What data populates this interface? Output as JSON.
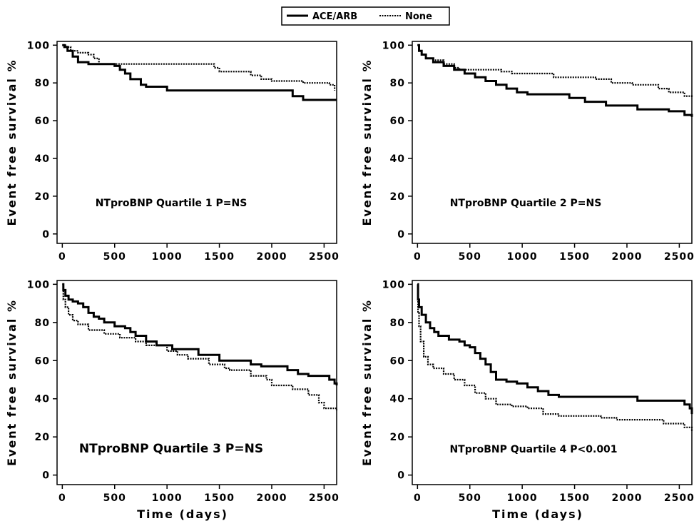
{
  "legend": {
    "entries": [
      {
        "label": "ACE/ARB",
        "style": "solid"
      },
      {
        "label": "None",
        "style": "dotted"
      }
    ]
  },
  "chart_data": [
    {
      "type": "line",
      "annotation": "NTproBNP Quartile 1 P=NS",
      "xlabel": "",
      "ylabel": "Event free survival %",
      "xlim": [
        -50,
        2620
      ],
      "ylim": [
        -5,
        102
      ],
      "xticks": [
        0,
        500,
        1000,
        1500,
        2000,
        2500
      ],
      "yticks": [
        0,
        20,
        40,
        60,
        80,
        100
      ],
      "series": [
        {
          "name": "ACE/ARB",
          "style": "solid",
          "points": [
            [
              0,
              100
            ],
            [
              20,
              99
            ],
            [
              50,
              97
            ],
            [
              100,
              94
            ],
            [
              150,
              91
            ],
            [
              250,
              90
            ],
            [
              450,
              90
            ],
            [
              500,
              89
            ],
            [
              550,
              87
            ],
            [
              600,
              85
            ],
            [
              650,
              82
            ],
            [
              750,
              79
            ],
            [
              800,
              78
            ],
            [
              1000,
              76
            ],
            [
              1850,
              76
            ],
            [
              2200,
              73
            ],
            [
              2300,
              71
            ],
            [
              2620,
              71
            ]
          ]
        },
        {
          "name": "None",
          "style": "dotted",
          "points": [
            [
              0,
              100
            ],
            [
              40,
              99
            ],
            [
              80,
              97
            ],
            [
              150,
              96
            ],
            [
              250,
              95
            ],
            [
              300,
              93
            ],
            [
              350,
              90
            ],
            [
              1350,
              90
            ],
            [
              1450,
              88
            ],
            [
              1500,
              86
            ],
            [
              1800,
              84
            ],
            [
              1900,
              82
            ],
            [
              2000,
              81
            ],
            [
              2300,
              80
            ],
            [
              2550,
              79
            ],
            [
              2600,
              76
            ]
          ]
        }
      ]
    },
    {
      "type": "line",
      "annotation": "NTproBNP Quartile 2 P=NS",
      "xlabel": "",
      "ylabel": "Event free survival %",
      "xlim": [
        -50,
        2620
      ],
      "ylim": [
        -5,
        102
      ],
      "xticks": [
        0,
        500,
        1000,
        1500,
        2000,
        2500
      ],
      "yticks": [
        0,
        20,
        40,
        60,
        80,
        100
      ],
      "series": [
        {
          "name": "ACE/ARB",
          "style": "solid",
          "points": [
            [
              0,
              100
            ],
            [
              15,
              97
            ],
            [
              40,
              95
            ],
            [
              80,
              93
            ],
            [
              150,
              91
            ],
            [
              250,
              89
            ],
            [
              350,
              87
            ],
            [
              450,
              85
            ],
            [
              550,
              83
            ],
            [
              650,
              81
            ],
            [
              750,
              79
            ],
            [
              850,
              77
            ],
            [
              950,
              75
            ],
            [
              1050,
              74
            ],
            [
              1450,
              72
            ],
            [
              1600,
              70
            ],
            [
              1800,
              68
            ],
            [
              2100,
              66
            ],
            [
              2400,
              65
            ],
            [
              2550,
              63
            ],
            [
              2620,
              62
            ]
          ]
        },
        {
          "name": "None",
          "style": "dotted",
          "points": [
            [
              0,
              100
            ],
            [
              15,
              97
            ],
            [
              40,
              95
            ],
            [
              80,
              93
            ],
            [
              150,
              92
            ],
            [
              250,
              90
            ],
            [
              350,
              88
            ],
            [
              400,
              87
            ],
            [
              800,
              86
            ],
            [
              900,
              85
            ],
            [
              1300,
              83
            ],
            [
              1700,
              82
            ],
            [
              1850,
              80
            ],
            [
              2050,
              79
            ],
            [
              2300,
              77
            ],
            [
              2400,
              75
            ],
            [
              2550,
              73
            ],
            [
              2620,
              72
            ]
          ]
        }
      ]
    },
    {
      "type": "line",
      "annotation": "NTproBNP Quartile 3 P=NS",
      "xlabel": "Time (days)",
      "ylabel": "Event free survival %",
      "xlim": [
        -50,
        2620
      ],
      "ylim": [
        -5,
        102
      ],
      "xticks": [
        0,
        500,
        1000,
        1500,
        2000,
        2500
      ],
      "yticks": [
        0,
        20,
        40,
        60,
        80,
        100
      ],
      "series": [
        {
          "name": "ACE/ARB",
          "style": "solid",
          "points": [
            [
              0,
              100
            ],
            [
              10,
              97
            ],
            [
              30,
              94
            ],
            [
              60,
              92
            ],
            [
              100,
              91
            ],
            [
              150,
              90
            ],
            [
              200,
              88
            ],
            [
              250,
              85
            ],
            [
              300,
              83
            ],
            [
              350,
              82
            ],
            [
              400,
              80
            ],
            [
              500,
              78
            ],
            [
              600,
              77
            ],
            [
              650,
              75
            ],
            [
              700,
              73
            ],
            [
              800,
              70
            ],
            [
              900,
              68
            ],
            [
              1050,
              66
            ],
            [
              1300,
              63
            ],
            [
              1500,
              60
            ],
            [
              1800,
              58
            ],
            [
              1900,
              57
            ],
            [
              2150,
              55
            ],
            [
              2250,
              53
            ],
            [
              2350,
              52
            ],
            [
              2550,
              50
            ],
            [
              2600,
              48
            ],
            [
              2620,
              47
            ]
          ]
        },
        {
          "name": "None",
          "style": "dotted",
          "points": [
            [
              0,
              100
            ],
            [
              10,
              92
            ],
            [
              30,
              88
            ],
            [
              60,
              84
            ],
            [
              100,
              81
            ],
            [
              150,
              79
            ],
            [
              250,
              76
            ],
            [
              400,
              74
            ],
            [
              550,
              72
            ],
            [
              700,
              70
            ],
            [
              800,
              68
            ],
            [
              1000,
              65
            ],
            [
              1100,
              63
            ],
            [
              1200,
              61
            ],
            [
              1400,
              58
            ],
            [
              1550,
              56
            ],
            [
              1600,
              55
            ],
            [
              1800,
              52
            ],
            [
              1950,
              50
            ],
            [
              2000,
              47
            ],
            [
              2200,
              45
            ],
            [
              2350,
              42
            ],
            [
              2450,
              38
            ],
            [
              2500,
              35
            ],
            [
              2620,
              34
            ]
          ]
        }
      ]
    },
    {
      "type": "line",
      "annotation": "NTproBNP Quartile 4 P<0.001",
      "xlabel": "Time (days)",
      "ylabel": "Event free survival %",
      "xlim": [
        -50,
        2620
      ],
      "ylim": [
        -5,
        102
      ],
      "xticks": [
        0,
        500,
        1000,
        1500,
        2000,
        2500
      ],
      "yticks": [
        0,
        20,
        40,
        60,
        80,
        100
      ],
      "series": [
        {
          "name": "ACE/ARB",
          "style": "solid",
          "points": [
            [
              0,
              100
            ],
            [
              5,
              92
            ],
            [
              15,
              88
            ],
            [
              40,
              84
            ],
            [
              80,
              80
            ],
            [
              120,
              77
            ],
            [
              160,
              75
            ],
            [
              200,
              73
            ],
            [
              300,
              71
            ],
            [
              400,
              70
            ],
            [
              450,
              68
            ],
            [
              500,
              67
            ],
            [
              550,
              64
            ],
            [
              600,
              61
            ],
            [
              650,
              58
            ],
            [
              700,
              54
            ],
            [
              750,
              50
            ],
            [
              850,
              49
            ],
            [
              950,
              48
            ],
            [
              1050,
              46
            ],
            [
              1150,
              44
            ],
            [
              1250,
              42
            ],
            [
              1350,
              41
            ],
            [
              1700,
              41
            ],
            [
              2100,
              39
            ],
            [
              2550,
              37
            ],
            [
              2600,
              35
            ],
            [
              2620,
              32
            ]
          ]
        },
        {
          "name": "None",
          "style": "dotted",
          "points": [
            [
              0,
              100
            ],
            [
              5,
              85
            ],
            [
              15,
              78
            ],
            [
              30,
              70
            ],
            [
              60,
              62
            ],
            [
              100,
              58
            ],
            [
              150,
              56
            ],
            [
              250,
              53
            ],
            [
              350,
              50
            ],
            [
              450,
              47
            ],
            [
              550,
              43
            ],
            [
              650,
              40
            ],
            [
              750,
              37
            ],
            [
              900,
              36
            ],
            [
              1050,
              35
            ],
            [
              1200,
              32
            ],
            [
              1350,
              31
            ],
            [
              1750,
              30
            ],
            [
              1900,
              29
            ],
            [
              2350,
              27
            ],
            [
              2550,
              25
            ],
            [
              2620,
              23
            ]
          ]
        }
      ]
    }
  ]
}
